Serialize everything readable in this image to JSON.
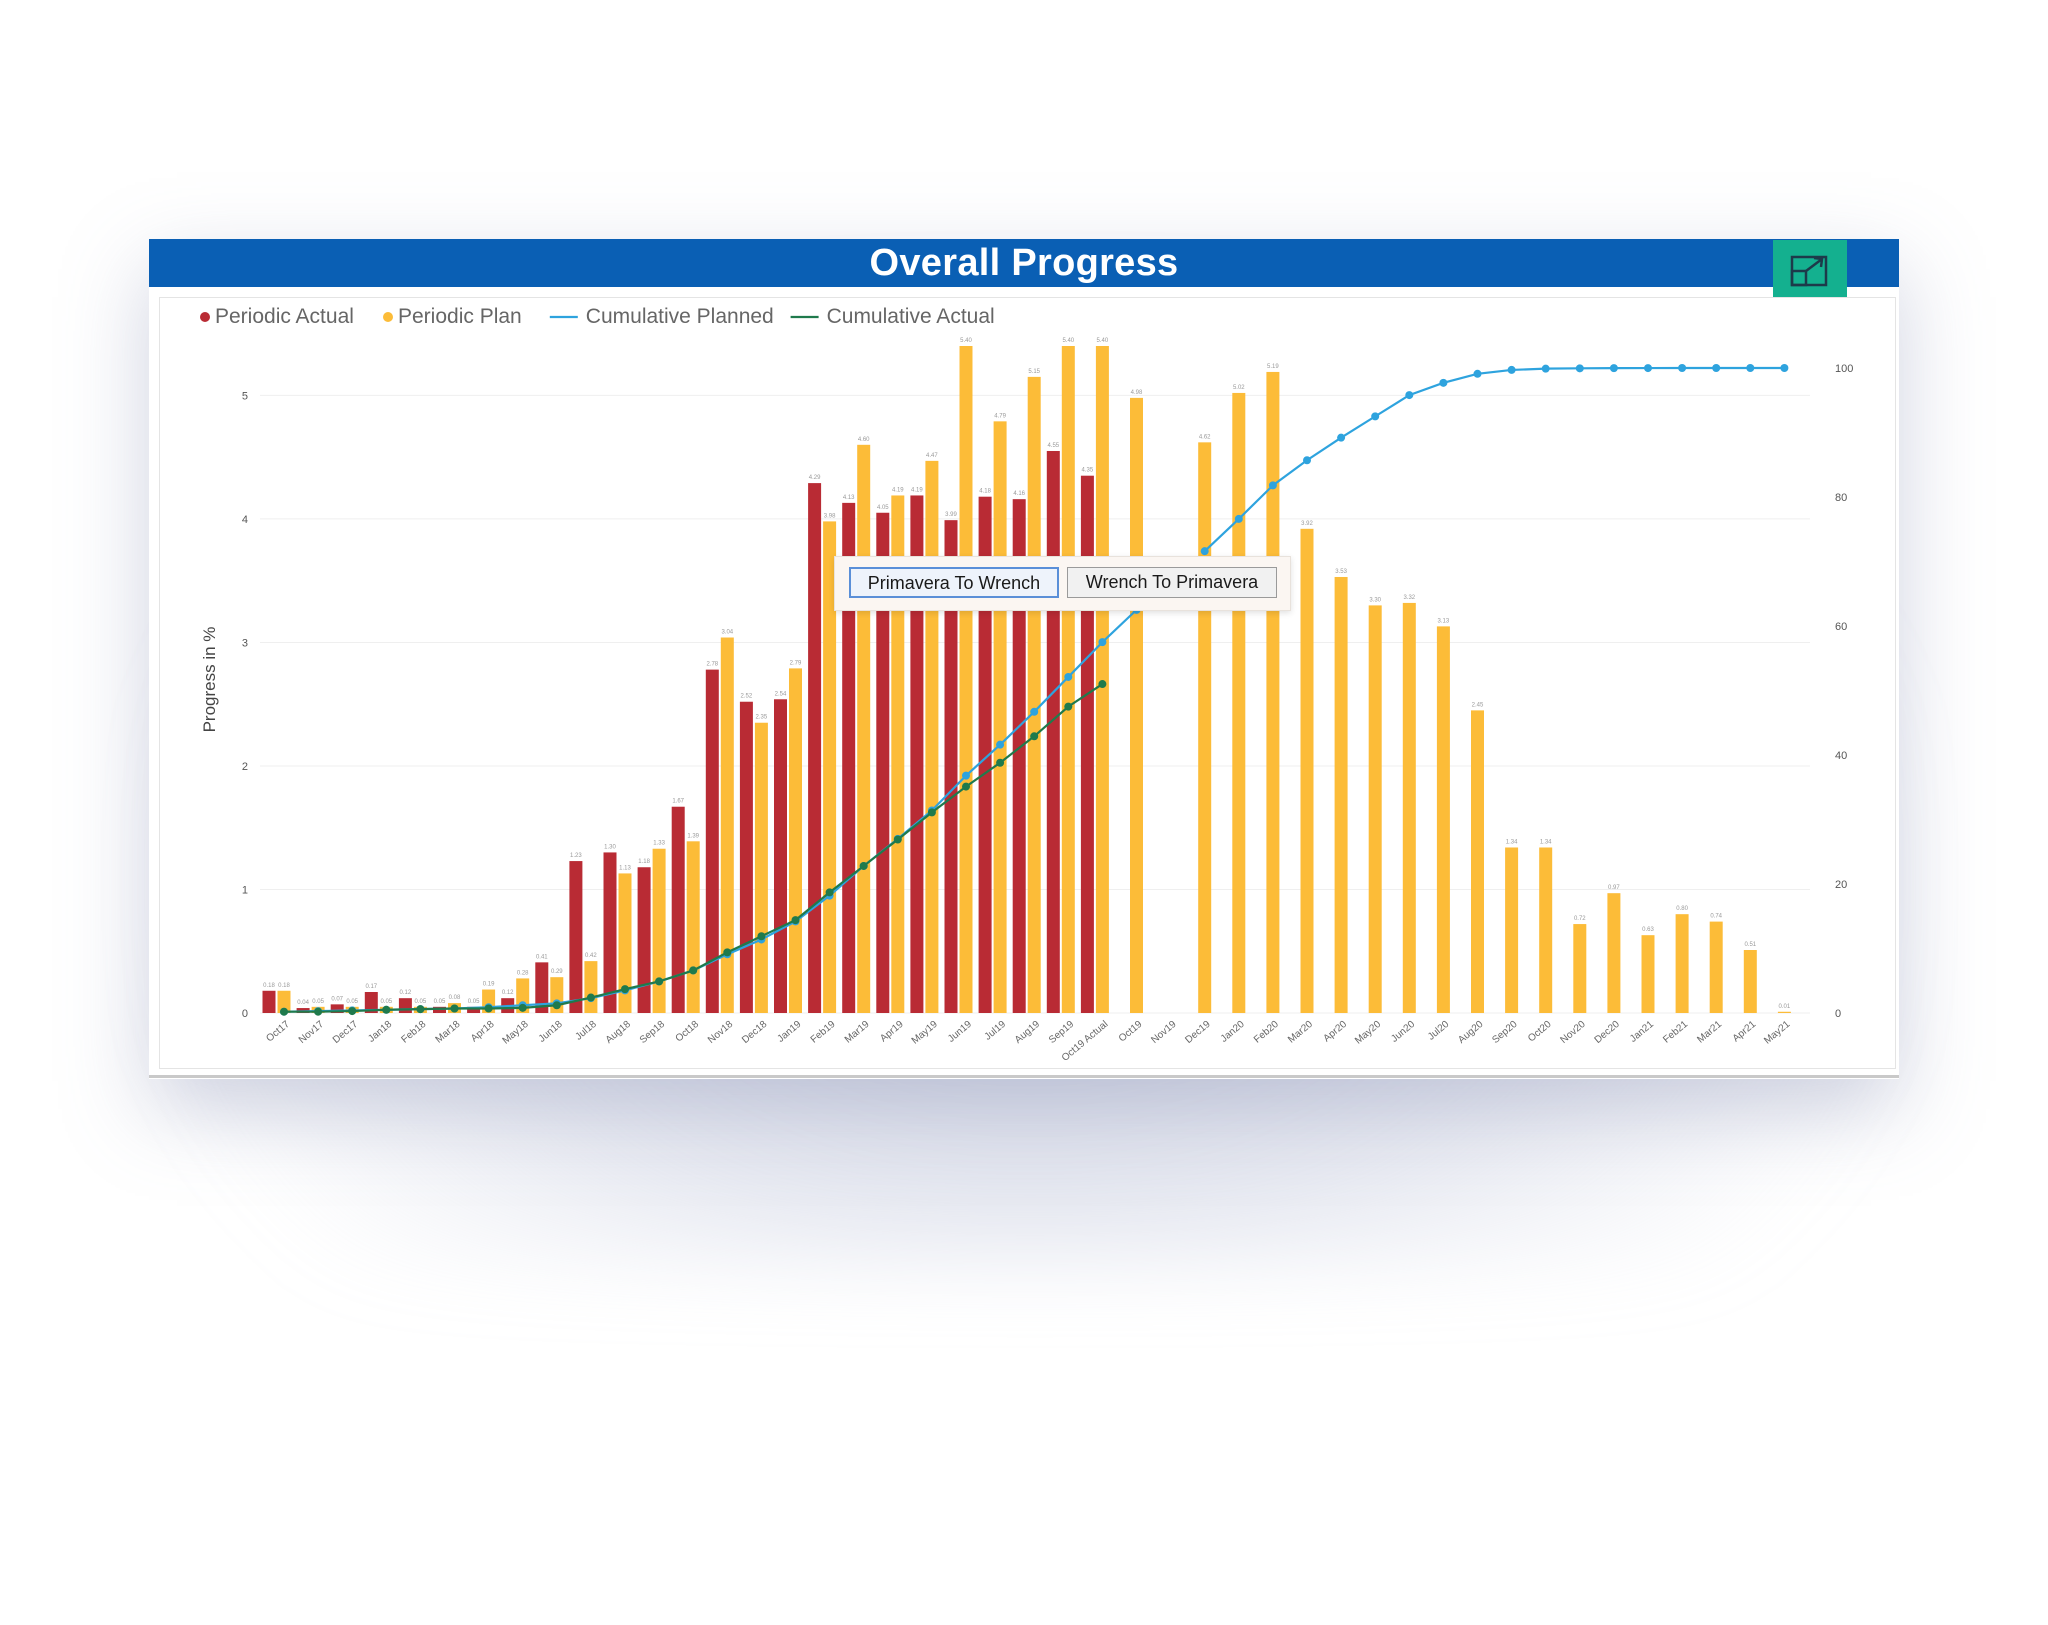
{
  "panel": {
    "title": "Overall Progress",
    "expand_icon": "expand-icon",
    "accent_color": "#0a5fb4",
    "expand_color": "#14b08f"
  },
  "buttons": {
    "primavera_to_wrench": "Primavera To Wrench",
    "wrench_to_primavera": "Wrench To Primavera"
  },
  "chart_data": {
    "type": "bar",
    "ylabel": "Progress in %",
    "ylim": [
      0,
      5.4
    ],
    "y2lim": [
      0,
      100
    ],
    "yticks": [
      "0",
      "1",
      "2",
      "3",
      "4",
      "5"
    ],
    "y2ticks": [
      "0",
      "20",
      "40",
      "60",
      "80",
      "100"
    ],
    "grid": true,
    "legend_position": "top-left",
    "categories": [
      "Oct17",
      "Nov17",
      "Dec17",
      "Jan18",
      "Feb18",
      "Mar18",
      "Apr18",
      "May18",
      "Jun18",
      "Jul18",
      "Aug18",
      "Sep18",
      "Oct18",
      "Nov18",
      "Dec18",
      "Jan19",
      "Feb19",
      "Mar19",
      "Apr19",
      "May19",
      "Jun19",
      "Jul19",
      "Aug19",
      "Sep19",
      "Oct19 Actual",
      "Oct19",
      "Nov19",
      "Dec19",
      "Jan20",
      "Feb20",
      "Mar20",
      "Apr20",
      "May20",
      "Jun20",
      "Jul20",
      "Aug20",
      "Sep20",
      "Oct20",
      "Nov20",
      "Dec20",
      "Jan21",
      "Feb21",
      "Mar21",
      "Apr21",
      "May21"
    ],
    "series": [
      {
        "name": "Periodic Actual",
        "kind": "bar",
        "color": "#b92b34",
        "axis": "left",
        "values": [
          0.18,
          0.04,
          0.07,
          0.17,
          0.12,
          0.05,
          0.05,
          0.12,
          0.41,
          1.23,
          1.3,
          1.18,
          1.67,
          2.78,
          2.52,
          2.54,
          4.29,
          4.13,
          4.05,
          4.19,
          3.99,
          4.18,
          4.16,
          4.55,
          4.35,
          null,
          null,
          null,
          null,
          null,
          null,
          null,
          null,
          null,
          null,
          null,
          null,
          null,
          null,
          null,
          null,
          null,
          null,
          null,
          null
        ]
      },
      {
        "name": "Periodic Plan",
        "kind": "bar",
        "color": "#fcbc38",
        "axis": "left",
        "values": [
          0.18,
          0.05,
          0.05,
          0.05,
          0.05,
          0.08,
          0.19,
          0.28,
          0.29,
          0.42,
          1.13,
          1.33,
          1.39,
          3.04,
          2.35,
          2.79,
          3.98,
          4.6,
          4.19,
          4.47,
          5.4,
          4.79,
          5.15,
          5.4,
          5.4,
          4.98,
          null,
          4.62,
          5.02,
          5.19,
          3.92,
          3.53,
          3.3,
          3.32,
          3.13,
          2.45,
          1.34,
          1.34,
          0.72,
          0.97,
          0.63,
          0.8,
          0.74,
          0.51,
          0.01
        ]
      },
      {
        "name": "Cumulative Planned",
        "kind": "line",
        "color": "#2ea3de",
        "axis": "right",
        "values": [
          0.2,
          0.3,
          0.4,
          0.5,
          0.6,
          0.7,
          0.9,
          1.2,
          1.5,
          2.3,
          3.5,
          4.9,
          6.6,
          9.1,
          11.4,
          14.2,
          18.2,
          22.8,
          27.0,
          31.4,
          36.8,
          41.6,
          46.7,
          52.1,
          57.5,
          62.5,
          null,
          71.6,
          76.6,
          81.8,
          85.7,
          89.2,
          92.5,
          95.8,
          97.7,
          99.1,
          99.7,
          99.9,
          99.95,
          99.98,
          99.99,
          100,
          100,
          100,
          100
        ]
      },
      {
        "name": "Cumulative Actual",
        "kind": "line",
        "color": "#1f7a4c",
        "axis": "right",
        "values": [
          0.2,
          0.2,
          0.3,
          0.5,
          0.6,
          0.7,
          0.7,
          0.8,
          1.2,
          2.4,
          3.7,
          4.9,
          6.6,
          9.4,
          11.9,
          14.4,
          18.7,
          22.8,
          26.9,
          31.1,
          35.1,
          38.8,
          42.9,
          47.5,
          51.0,
          null,
          null,
          null,
          null,
          null,
          null,
          null,
          null,
          null,
          null,
          null,
          null,
          null,
          null,
          null,
          null,
          null,
          null,
          null,
          null
        ]
      }
    ]
  }
}
